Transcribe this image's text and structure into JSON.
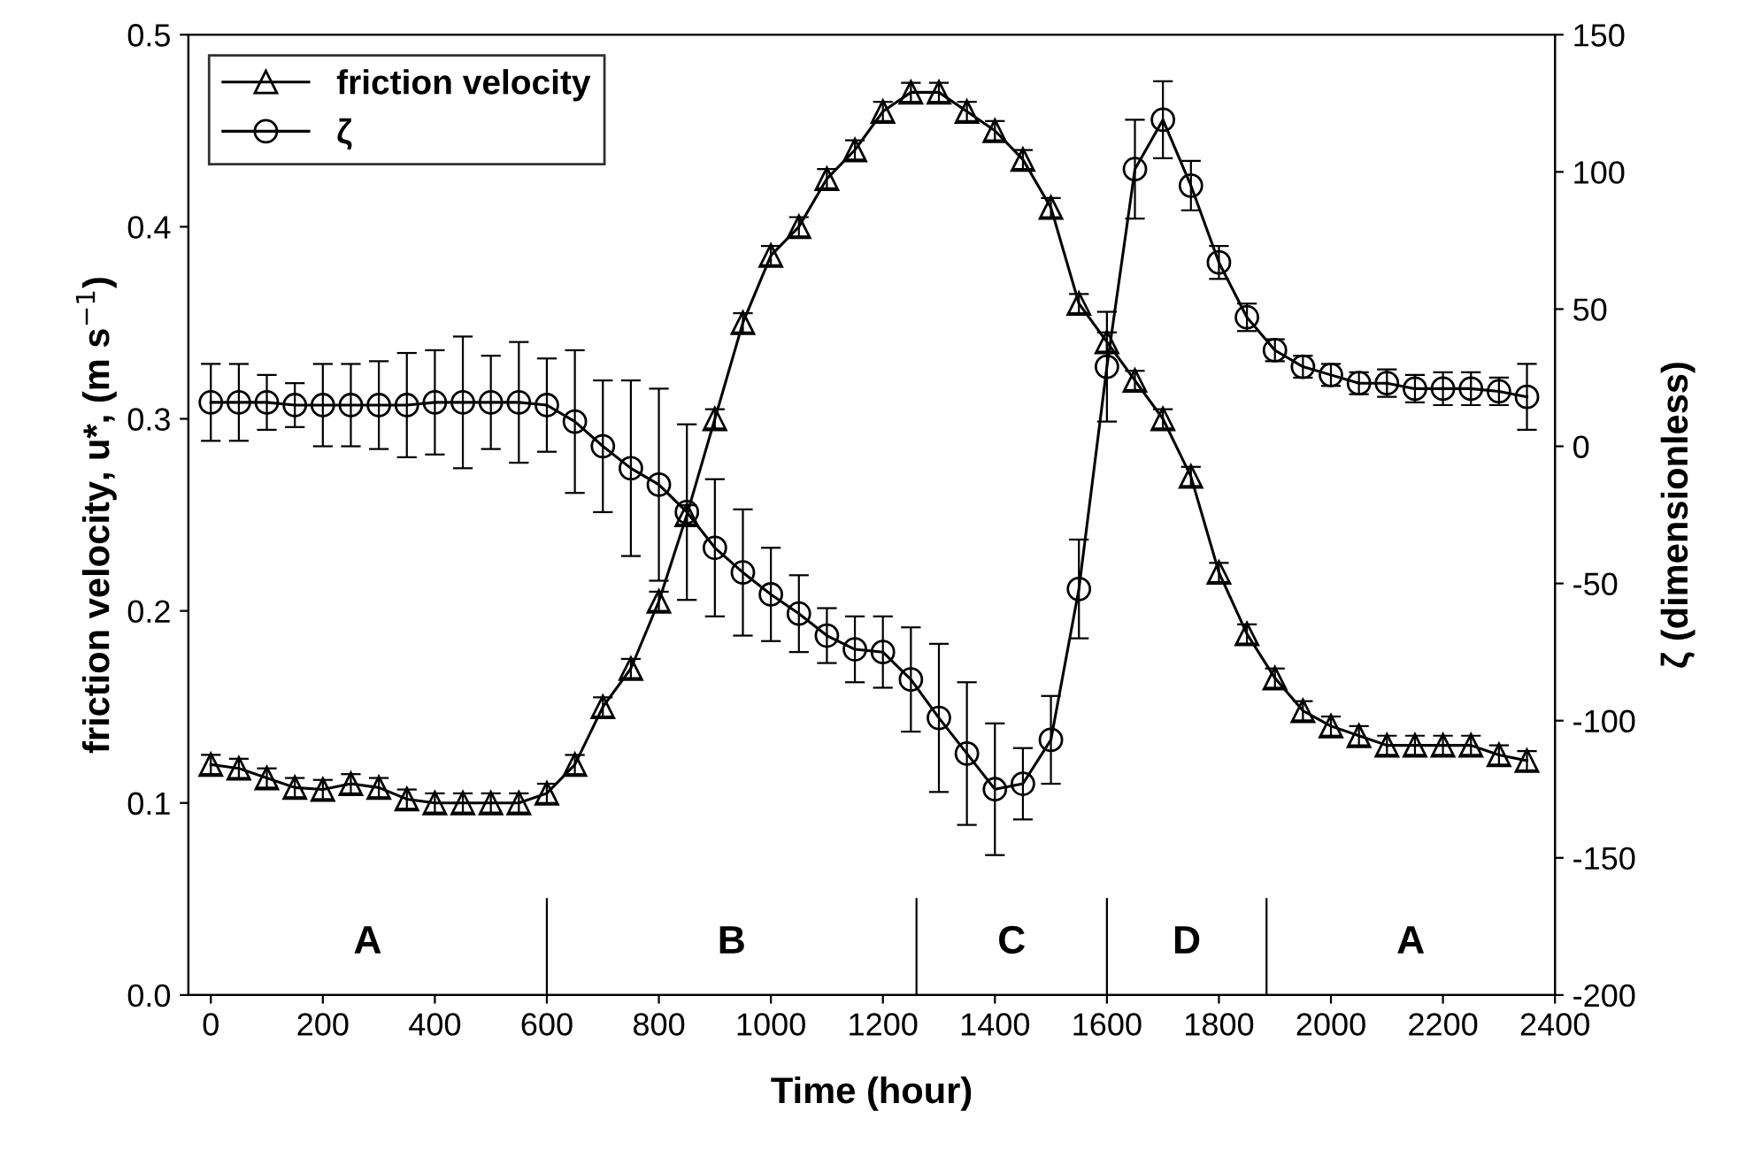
{
  "chart_data": {
    "type": "line",
    "xlabel": "Time (hour)",
    "ylabel": "friction velocity, u*, (m s$^{−1}$)",
    "y2label": "ζ (dimensionless)",
    "x": [
      0,
      50,
      100,
      150,
      200,
      250,
      300,
      350,
      400,
      450,
      500,
      550,
      600,
      650,
      700,
      750,
      800,
      850,
      900,
      950,
      1000,
      1050,
      1100,
      1150,
      1200,
      1250,
      1300,
      1350,
      1400,
      1450,
      1500,
      1550,
      1600,
      1650,
      1700,
      1750,
      1800,
      1850,
      1900,
      1950,
      2000,
      2050,
      2100,
      2150,
      2200,
      2250,
      2300,
      2350
    ],
    "series": [
      {
        "name": "friction velocity",
        "color": "#000000",
        "marker": "triangle",
        "axis": "y",
        "values": [
          0.12,
          0.118,
          0.113,
          0.108,
          0.107,
          0.11,
          0.108,
          0.102,
          0.1,
          0.1,
          0.1,
          0.1,
          0.105,
          0.12,
          0.15,
          0.17,
          0.205,
          0.25,
          0.3,
          0.35,
          0.385,
          0.4,
          0.425,
          0.44,
          0.46,
          0.47,
          0.47,
          0.46,
          0.45,
          0.435,
          0.41,
          0.36,
          0.34,
          0.32,
          0.3,
          0.27,
          0.22,
          0.188,
          0.165,
          0.148,
          0.14,
          0.135,
          0.13,
          0.13,
          0.13,
          0.13,
          0.125,
          0.122
        ],
        "errors": [
          0.005,
          0.005,
          0.005,
          0.005,
          0.005,
          0.005,
          0.005,
          0.005,
          0.005,
          0.005,
          0.005,
          0.005,
          0.005,
          0.005,
          0.005,
          0.005,
          0.005,
          0.005,
          0.005,
          0.005,
          0.005,
          0.005,
          0.005,
          0.005,
          0.005,
          0.005,
          0.005,
          0.005,
          0.005,
          0.005,
          0.005,
          0.005,
          0.005,
          0.005,
          0.005,
          0.005,
          0.005,
          0.005,
          0.005,
          0.005,
          0.005,
          0.005,
          0.005,
          0.005,
          0.005,
          0.005,
          0.005,
          0.005
        ]
      },
      {
        "name": "ζ",
        "color": "#000000",
        "marker": "circle",
        "axis": "y2",
        "values": [
          16,
          16,
          16,
          15,
          15,
          15,
          15,
          15,
          16,
          16,
          16,
          16,
          15,
          9,
          0,
          -8,
          -14,
          -24,
          -37,
          -46,
          -54,
          -61,
          -69,
          -74,
          -75,
          -85,
          -99,
          -112,
          -125,
          -123,
          -107,
          -52,
          29,
          101,
          119,
          95,
          67,
          47,
          35,
          29,
          26,
          23,
          23,
          21,
          21,
          21,
          20,
          18
        ],
        "errors": [
          14,
          14,
          10,
          8,
          15,
          15,
          16,
          19,
          19,
          24,
          17,
          22,
          17,
          26,
          24,
          32,
          35,
          32,
          25,
          23,
          17,
          14,
          10,
          12,
          13,
          19,
          27,
          26,
          24,
          13,
          16,
          18,
          20,
          18,
          14,
          9,
          6,
          5,
          4,
          4,
          4,
          4,
          5,
          5,
          6,
          6,
          5,
          12
        ]
      }
    ],
    "xlim": [
      -40,
      2400
    ],
    "xticks": [
      0,
      200,
      400,
      600,
      800,
      1000,
      1200,
      1400,
      1600,
      1800,
      2000,
      2200,
      2400
    ],
    "ylim": [
      0,
      0.5
    ],
    "yticks": [
      {
        "value": 0,
        "label": "0.0"
      },
      0.1,
      0.2,
      0.3,
      0.4,
      0.5
    ],
    "y2lim": [
      -200,
      150
    ],
    "y2ticks": [
      -200,
      -150,
      -100,
      -50,
      0,
      50,
      100,
      150
    ],
    "ref_lines": [
      {
        "axis": "x",
        "value": 600
      },
      {
        "axis": "x",
        "value": 1260
      },
      {
        "axis": "x",
        "value": 1600
      },
      {
        "axis": "x",
        "value": 1885
      }
    ],
    "annotations": [
      "A",
      "B",
      "C",
      "D",
      "A"
    ],
    "legend": "top left",
    "grid": false,
    "line_style": "solid"
  }
}
